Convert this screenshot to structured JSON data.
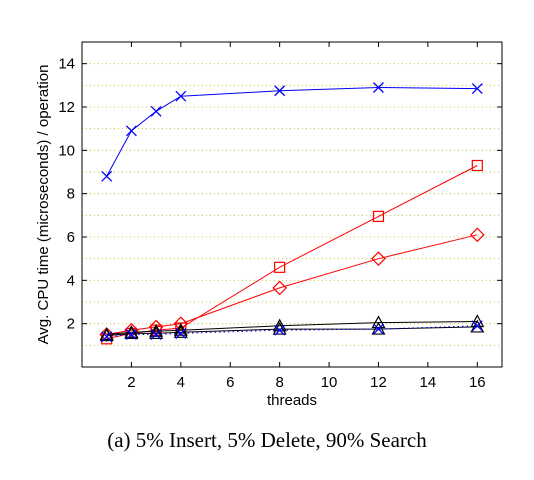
{
  "chart_data": {
    "type": "line",
    "caption": "(a) 5% Insert, 5% Delete, 90% Search",
    "xlabel": "threads",
    "ylabel": "Avg. CPU time (microseconds) / operation",
    "xlim": [
      0,
      17
    ],
    "ylim": [
      0,
      15
    ],
    "xticks": [
      2,
      4,
      6,
      8,
      10,
      12,
      14,
      16
    ],
    "yticks": [
      2,
      4,
      6,
      8,
      10,
      12,
      14
    ],
    "grid": "horizontal dotted",
    "series": [
      {
        "color": "#0000ff",
        "marker": "x",
        "line": "solid",
        "x": [
          1,
          2,
          3,
          4,
          8,
          12,
          16
        ],
        "y": [
          8.8,
          10.9,
          11.8,
          12.5,
          12.75,
          12.9,
          12.85
        ]
      },
      {
        "color": "#ff0000",
        "marker": "square",
        "line": "solid",
        "x": [
          1,
          2,
          3,
          4,
          8,
          12,
          16
        ],
        "y": [
          1.3,
          1.55,
          1.7,
          1.8,
          4.6,
          6.95,
          9.3
        ]
      },
      {
        "color": "#ff0000",
        "marker": "diamond",
        "line": "solid",
        "x": [
          1,
          2,
          3,
          4,
          8,
          12,
          16
        ],
        "y": [
          1.5,
          1.7,
          1.85,
          2.0,
          3.65,
          5.0,
          6.1
        ]
      },
      {
        "color": "#000000",
        "marker": "triangle",
        "line": "solid",
        "x": [
          1,
          2,
          3,
          4,
          8,
          12,
          16
        ],
        "y": [
          1.5,
          1.6,
          1.65,
          1.7,
          1.9,
          2.05,
          2.1
        ]
      },
      {
        "color": "#000000",
        "marker": "triangle",
        "line": "solid",
        "x": [
          1,
          2,
          3,
          4,
          8,
          12,
          16
        ],
        "y": [
          1.45,
          1.55,
          1.55,
          1.6,
          1.75,
          1.75,
          1.85
        ]
      },
      {
        "color": "#0000ff",
        "marker": "x",
        "line": "dotted",
        "x": [
          1,
          2,
          3,
          4,
          8,
          12,
          16
        ],
        "y": [
          1.4,
          1.5,
          1.5,
          1.55,
          1.7,
          1.75,
          1.9
        ]
      }
    ]
  }
}
